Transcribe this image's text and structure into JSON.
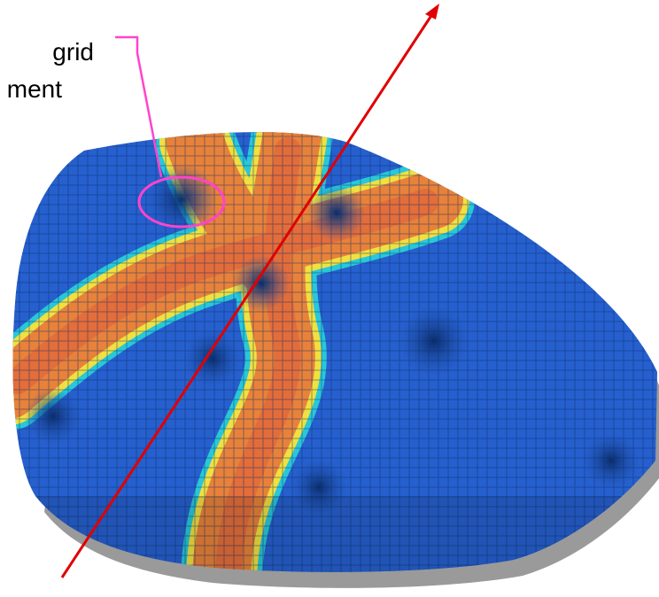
{
  "annotation": {
    "lines": [
      "grid",
      "ment"
    ]
  }
}
